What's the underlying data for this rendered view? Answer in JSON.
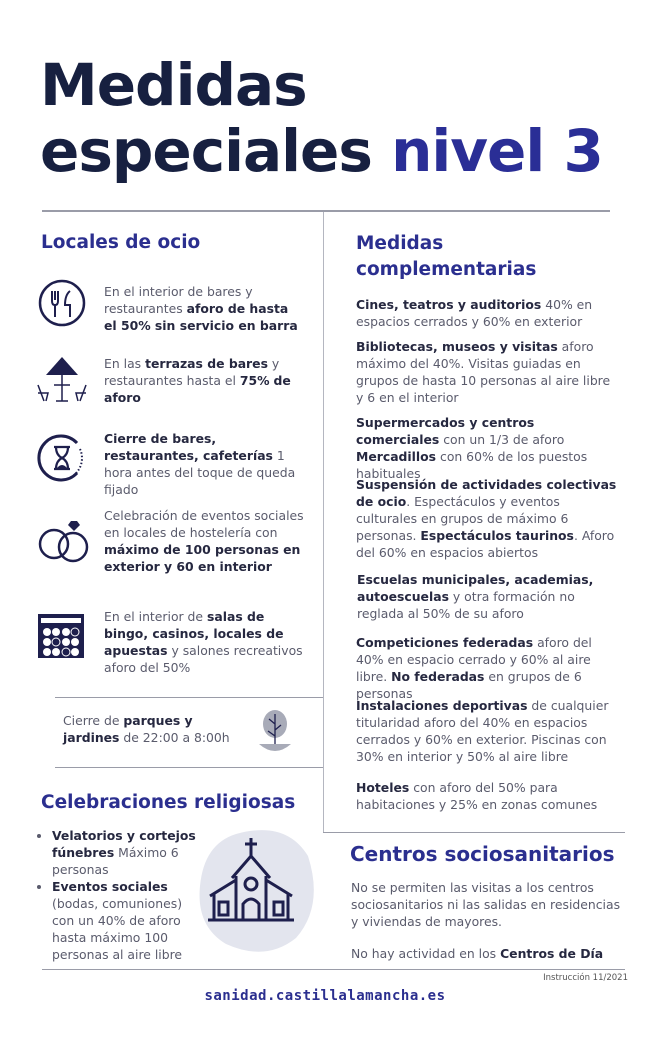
{
  "title": {
    "line1": "Medidas",
    "line2": "especiales",
    "accent": "nivel 3"
  },
  "colors": {
    "title": "#172040",
    "accent": "#2a2e96",
    "heading": "#2b2f8f",
    "text": "#5a5b6c"
  },
  "locales": {
    "heading": "Locales de ocio",
    "items": [
      {
        "icon": "cutlery-icon",
        "text": [
          {
            "t": "En el interior de bares y restaurantes "
          },
          {
            "t": "aforo de hasta el 50% sin servicio en barra",
            "b": true
          }
        ]
      },
      {
        "icon": "terrace-umbrella-icon",
        "text": [
          {
            "t": "En las "
          },
          {
            "t": "terrazas de bares",
            "b": true
          },
          {
            "t": " y restaurantes hasta el "
          },
          {
            "t": "75%",
            "b": true
          },
          {
            "t": " "
          },
          {
            "t": "de aforo",
            "b": true
          }
        ]
      },
      {
        "icon": "hourglass-clock-icon",
        "text": [
          {
            "t": "Cierre de bares, restaurantes, cafeterías",
            "b": true
          },
          {
            "t": " 1 hora antes del toque de queda fijado"
          }
        ]
      },
      {
        "icon": "wedding-rings-icon",
        "text": [
          {
            "t": "Celebración de eventos sociales en locales de hostelería con "
          },
          {
            "t": "máximo de 100 personas en exterior y 60 en interior",
            "b": true
          }
        ]
      },
      {
        "icon": "bingo-card-icon",
        "text": [
          {
            "t": "En el interior de "
          },
          {
            "t": "salas de bingo, casinos, locales de apuestas",
            "b": true
          },
          {
            "t": " y salones recreativos aforo del 50%"
          }
        ]
      }
    ]
  },
  "parques": {
    "icon": "tree-icon",
    "text": [
      {
        "t": "Cierre de "
      },
      {
        "t": "parques y jardines",
        "b": true
      },
      {
        "t": " de 22:00 a 8:00h"
      }
    ]
  },
  "religiosas": {
    "heading": "Celebraciones religiosas",
    "icon": "church-icon",
    "items": [
      [
        {
          "t": "Velatorios y cortejos fúnebres",
          "b": true
        },
        {
          "t": " Máximo 6 personas"
        }
      ],
      [
        {
          "t": "Eventos sociales",
          "b": true
        },
        {
          "t": " (bodas, comuniones) con un 40% de aforo hasta máximo 100 personas al aire libre"
        }
      ]
    ]
  },
  "complementarias": {
    "heading": "Medidas complementarias",
    "items": [
      [
        {
          "t": "Cines, teatros y auditorios",
          "b": true
        },
        {
          "t": " 40% en espacios cerrados y 60% en exterior"
        }
      ],
      [
        {
          "t": "Bibliotecas, museos y visitas",
          "b": true
        },
        {
          "t": " aforo máximo del 40%. Visitas guiadas en grupos de hasta 10 personas al aire libre y 6 en el interior"
        }
      ],
      [
        {
          "t": "Supermercados y centros comerciales",
          "b": true
        },
        {
          "t": " con un 1/3 de aforo "
        },
        {
          "t": "Mercadillos",
          "b": true
        },
        {
          "t": " con 60% de los puestos habituales"
        }
      ],
      [
        {
          "t": "Suspensión de actividades colectivas de ocio",
          "b": true
        },
        {
          "t": ". Espectáculos y eventos culturales en grupos de máximo 6 personas. "
        },
        {
          "t": "Espectáculos taurinos",
          "b": true
        },
        {
          "t": ". Aforo del 60% en espacios abiertos"
        }
      ],
      [
        {
          "t": "Escuelas municipales, academias, autoescuelas",
          "b": true
        },
        {
          "t": " y otra formación no reglada al 50% de su aforo"
        }
      ],
      [
        {
          "t": "Competiciones federadas",
          "b": true
        },
        {
          "t": " aforo del 40% en espacio cerrado y 60% al aire libre. "
        },
        {
          "t": "No federadas",
          "b": true
        },
        {
          "t": " en grupos de 6 personas"
        }
      ],
      [
        {
          "t": "Instalaciones deportivas",
          "b": true
        },
        {
          "t": " de cualquier titularidad aforo del 40% en espacios cerrados y 60% en exterior. Piscinas con 30% en interior y 50% al aire libre"
        }
      ],
      [
        {
          "t": "Hoteles",
          "b": true
        },
        {
          "t": " con aforo del 50% para habitaciones y 25% en zonas comunes"
        }
      ]
    ]
  },
  "sociosanitarios": {
    "heading": "Centros sociosanitarios",
    "items": [
      [
        {
          "t": "No se permiten las visitas a los centros sociosanitarios ni las salidas en residencias y viviendas de mayores."
        }
      ],
      [
        {
          "t": "No hay actividad en los "
        },
        {
          "t": "Centros de Día",
          "b": true
        }
      ]
    ]
  },
  "footer": {
    "instruction": "Instrucción 11/2021",
    "url": "sanidad.castillalamancha.es"
  }
}
